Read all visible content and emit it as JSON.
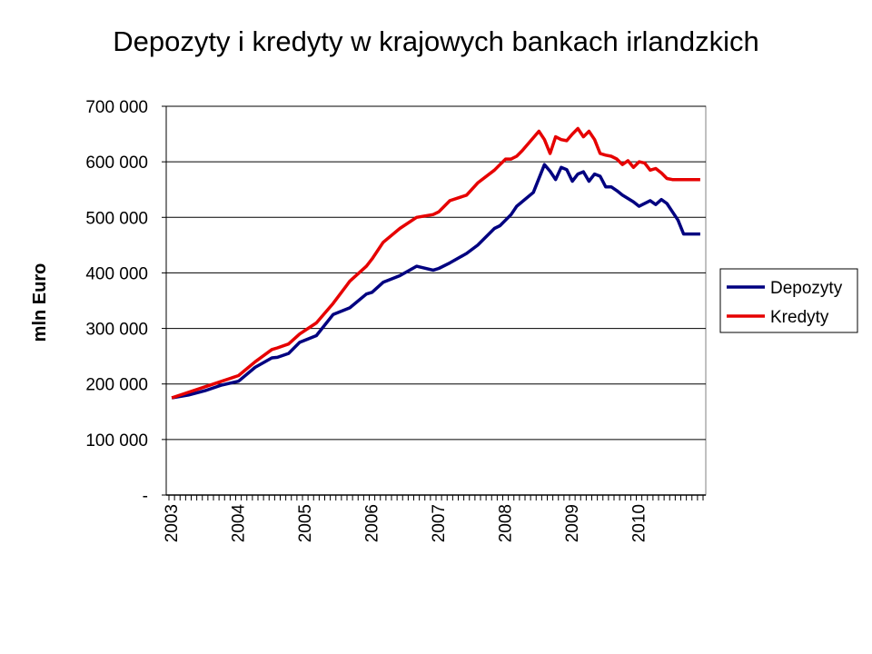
{
  "chart_data": {
    "type": "line",
    "title": "Depozyty i kredyty w krajowych bankach irlandzkich",
    "xlabel": "",
    "ylabel": "mln Euro",
    "ylim": [
      0,
      700000
    ],
    "xlim": [
      "2003-01",
      "2010-12"
    ],
    "x_unit": "month",
    "yticks": [
      0,
      100000,
      200000,
      300000,
      400000,
      500000,
      600000,
      700000
    ],
    "ytick_labels": [
      "-",
      "100 000",
      "200 000",
      "300 000",
      "400 000",
      "500 000",
      "600 000",
      "700 000"
    ],
    "xtick_labels": [
      "2003",
      "2004",
      "2005",
      "2006",
      "2007",
      "2008",
      "2009",
      "2010"
    ],
    "grid": true,
    "legend_position": "right",
    "series": [
      {
        "name": "Depozyty",
        "color": "#000080",
        "x": [
          "2003-01",
          "2003-04",
          "2003-07",
          "2003-10",
          "2004-01",
          "2004-04",
          "2004-07",
          "2004-08",
          "2004-10",
          "2004-12",
          "2005-03",
          "2005-06",
          "2005-09",
          "2005-12",
          "2006-01",
          "2006-03",
          "2006-06",
          "2006-09",
          "2006-12",
          "2007-01",
          "2007-03",
          "2007-06",
          "2007-08",
          "2007-11",
          "2007-12",
          "2008-01",
          "2008-02",
          "2008-03",
          "2008-06",
          "2008-08",
          "2008-09",
          "2008-10",
          "2008-11",
          "2008-12",
          "2009-01",
          "2009-02",
          "2009-03",
          "2009-04",
          "2009-05",
          "2009-06",
          "2009-07",
          "2009-08",
          "2009-09",
          "2009-10",
          "2009-12",
          "2010-01",
          "2010-03",
          "2010-04",
          "2010-05",
          "2010-06",
          "2010-07",
          "2010-08",
          "2010-09",
          "2010-10",
          "2010-11",
          "2010-12"
        ],
        "values": [
          175000,
          180000,
          188000,
          198000,
          205000,
          230000,
          247000,
          248000,
          255000,
          275000,
          287000,
          325000,
          337000,
          362000,
          365000,
          383000,
          395000,
          412000,
          405000,
          408000,
          418000,
          435000,
          450000,
          480000,
          485000,
          495000,
          505000,
          520000,
          545000,
          595000,
          583000,
          568000,
          590000,
          586000,
          565000,
          578000,
          582000,
          565000,
          578000,
          574000,
          555000,
          555000,
          548000,
          540000,
          528000,
          520000,
          530000,
          523000,
          532000,
          525000,
          510000,
          495000,
          470000,
          470000,
          470000,
          470000
        ]
      },
      {
        "name": "Kredyty",
        "color": "#e60000",
        "x": [
          "2003-01",
          "2003-04",
          "2003-07",
          "2003-10",
          "2004-01",
          "2004-04",
          "2004-07",
          "2004-08",
          "2004-10",
          "2004-12",
          "2005-03",
          "2005-06",
          "2005-09",
          "2005-12",
          "2006-01",
          "2006-03",
          "2006-06",
          "2006-09",
          "2006-12",
          "2007-01",
          "2007-03",
          "2007-06",
          "2007-08",
          "2007-11",
          "2007-12",
          "2008-01",
          "2008-02",
          "2008-03",
          "2008-04",
          "2008-07",
          "2008-08",
          "2008-09",
          "2008-10",
          "2008-11",
          "2008-12",
          "2009-01",
          "2009-02",
          "2009-03",
          "2009-04",
          "2009-05",
          "2009-06",
          "2009-07",
          "2009-08",
          "2009-09",
          "2009-10",
          "2009-11",
          "2009-12",
          "2010-01",
          "2010-02",
          "2010-03",
          "2010-04",
          "2010-05",
          "2010-06",
          "2010-07",
          "2010-08",
          "2010-09",
          "2010-10",
          "2010-11",
          "2010-12"
        ],
        "values": [
          175000,
          185000,
          195000,
          205000,
          215000,
          240000,
          262000,
          265000,
          272000,
          290000,
          310000,
          345000,
          385000,
          412000,
          425000,
          455000,
          480000,
          500000,
          505000,
          510000,
          530000,
          540000,
          562000,
          585000,
          595000,
          605000,
          605000,
          610000,
          620000,
          655000,
          640000,
          615000,
          645000,
          640000,
          638000,
          650000,
          660000,
          645000,
          655000,
          640000,
          615000,
          612000,
          610000,
          605000,
          595000,
          602000,
          590000,
          600000,
          598000,
          585000,
          588000,
          580000,
          570000,
          568000,
          568000,
          568000,
          568000,
          568000,
          568000
        ]
      }
    ]
  }
}
